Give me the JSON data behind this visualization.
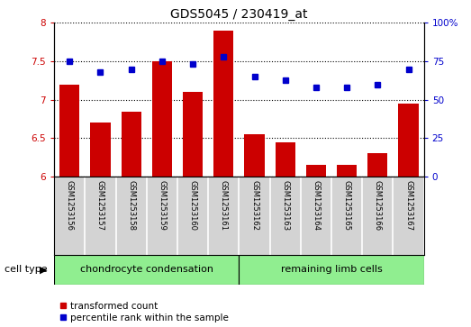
{
  "title": "GDS5045 / 230419_at",
  "samples": [
    "GSM1253156",
    "GSM1253157",
    "GSM1253158",
    "GSM1253159",
    "GSM1253160",
    "GSM1253161",
    "GSM1253162",
    "GSM1253163",
    "GSM1253164",
    "GSM1253165",
    "GSM1253166",
    "GSM1253167"
  ],
  "bar_values": [
    7.2,
    6.7,
    6.85,
    7.5,
    7.1,
    7.9,
    6.55,
    6.45,
    6.15,
    6.15,
    6.3,
    6.95
  ],
  "dot_values": [
    75,
    68,
    70,
    75,
    73,
    78,
    65,
    63,
    58,
    58,
    60,
    70
  ],
  "bar_color": "#cc0000",
  "dot_color": "#0000cc",
  "ylim_left": [
    6,
    8
  ],
  "ylim_right": [
    0,
    100
  ],
  "yticks_left": [
    6,
    6.5,
    7,
    7.5,
    8
  ],
  "yticks_right": [
    0,
    25,
    50,
    75,
    100
  ],
  "ytick_right_labels": [
    "0",
    "25",
    "50",
    "75",
    "100%"
  ],
  "group1_label": "chondrocyte condensation",
  "group2_label": "remaining limb cells",
  "group1_count": 6,
  "group2_count": 6,
  "cell_type_label": "cell type",
  "legend_bar_label": "transformed count",
  "legend_dot_label": "percentile rank within the sample",
  "group1_color": "#90EE90",
  "group2_color": "#90EE90",
  "sample_box_color": "#d3d3d3",
  "plot_bg": "#ffffff",
  "title_fontsize": 10,
  "tick_fontsize": 7.5,
  "sample_fontsize": 6,
  "label_fontsize": 8
}
